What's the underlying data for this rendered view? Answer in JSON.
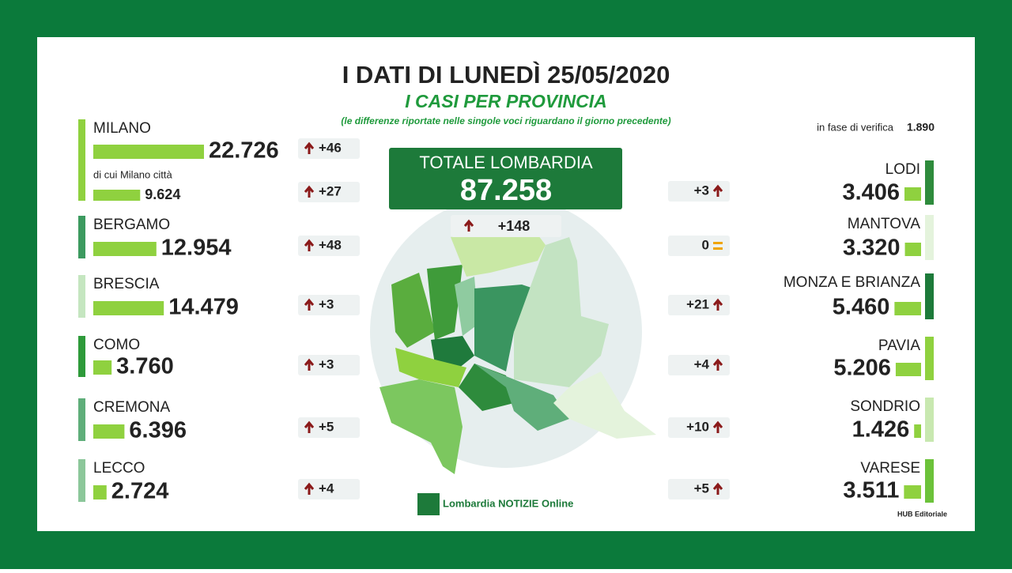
{
  "header": {
    "title": "I DATI DI LUNEDÌ 25/05/2020",
    "subtitle": "I CASI PER PROVINCIA",
    "note": "(le differenze riportate nelle singole voci riguardano il giorno precedente)"
  },
  "pending": {
    "label": "in fase di verifica",
    "value": {
      "value": 1890,
      "label": "1.890"
    }
  },
  "total": {
    "label": "TOTALE LOMBARDIA",
    "value": {
      "value": 87258,
      "label": "87.258"
    },
    "change": "+148",
    "trend": "up"
  },
  "left": [
    {
      "name": "MILANO",
      "value": {
        "value": 22726,
        "label": "22.726"
      },
      "change": "+46",
      "trend": "up",
      "color": "#8fd13f"
    },
    {
      "name": "di cui Milano città",
      "value": {
        "value": 9624,
        "label": "9.624"
      },
      "change": "+27",
      "trend": "up",
      "color": "#8fd13f"
    },
    {
      "name": "BERGAMO",
      "value": {
        "value": 12954,
        "label": "12.954"
      },
      "change": "+48",
      "trend": "up",
      "color": "#3c9a5f"
    },
    {
      "name": "BRESCIA",
      "value": {
        "value": 14479,
        "label": "14.479"
      },
      "change": "+3",
      "trend": "up",
      "color": "#c5e6c0"
    },
    {
      "name": "COMO",
      "value": {
        "value": 3760,
        "label": "3.760"
      },
      "change": "+3",
      "trend": "up",
      "color": "#2e9a3a"
    },
    {
      "name": "CREMONA",
      "value": {
        "value": 6396,
        "label": "6.396"
      },
      "change": "+5",
      "trend": "up",
      "color": "#5fae7a"
    },
    {
      "name": "LECCO",
      "value": {
        "value": 2724,
        "label": "2.724"
      },
      "change": "+4",
      "trend": "up",
      "color": "#8cc79a"
    }
  ],
  "right": [
    {
      "name": "LODI",
      "value": {
        "value": 3406,
        "label": "3.406"
      },
      "change": "+3",
      "trend": "up",
      "color": "#2e8b3c"
    },
    {
      "name": "MANTOVA",
      "value": {
        "value": 3320,
        "label": "3.320"
      },
      "change": "0",
      "trend": "same",
      "color": "#e4f3dc"
    },
    {
      "name": "MONZA E BRIANZA",
      "value": {
        "value": 5460,
        "label": "5.460"
      },
      "change": "+21",
      "trend": "up",
      "color": "#1d7a3a"
    },
    {
      "name": "PAVIA",
      "value": {
        "value": 5206,
        "label": "5.206"
      },
      "change": "+4",
      "trend": "up",
      "color": "#8fd13f"
    },
    {
      "name": "SONDRIO",
      "value": {
        "value": 1426,
        "label": "1.426"
      },
      "change": "+10",
      "trend": "up",
      "color": "#c8e8b0"
    },
    {
      "name": "VARESE",
      "value": {
        "value": 3511,
        "label": "3.511"
      },
      "change": "+5",
      "trend": "up",
      "color": "#6cc23a"
    }
  ],
  "footer": {
    "brand": "Lombardia NOTIZIE Online",
    "credit": "HUB Editoriale"
  }
}
